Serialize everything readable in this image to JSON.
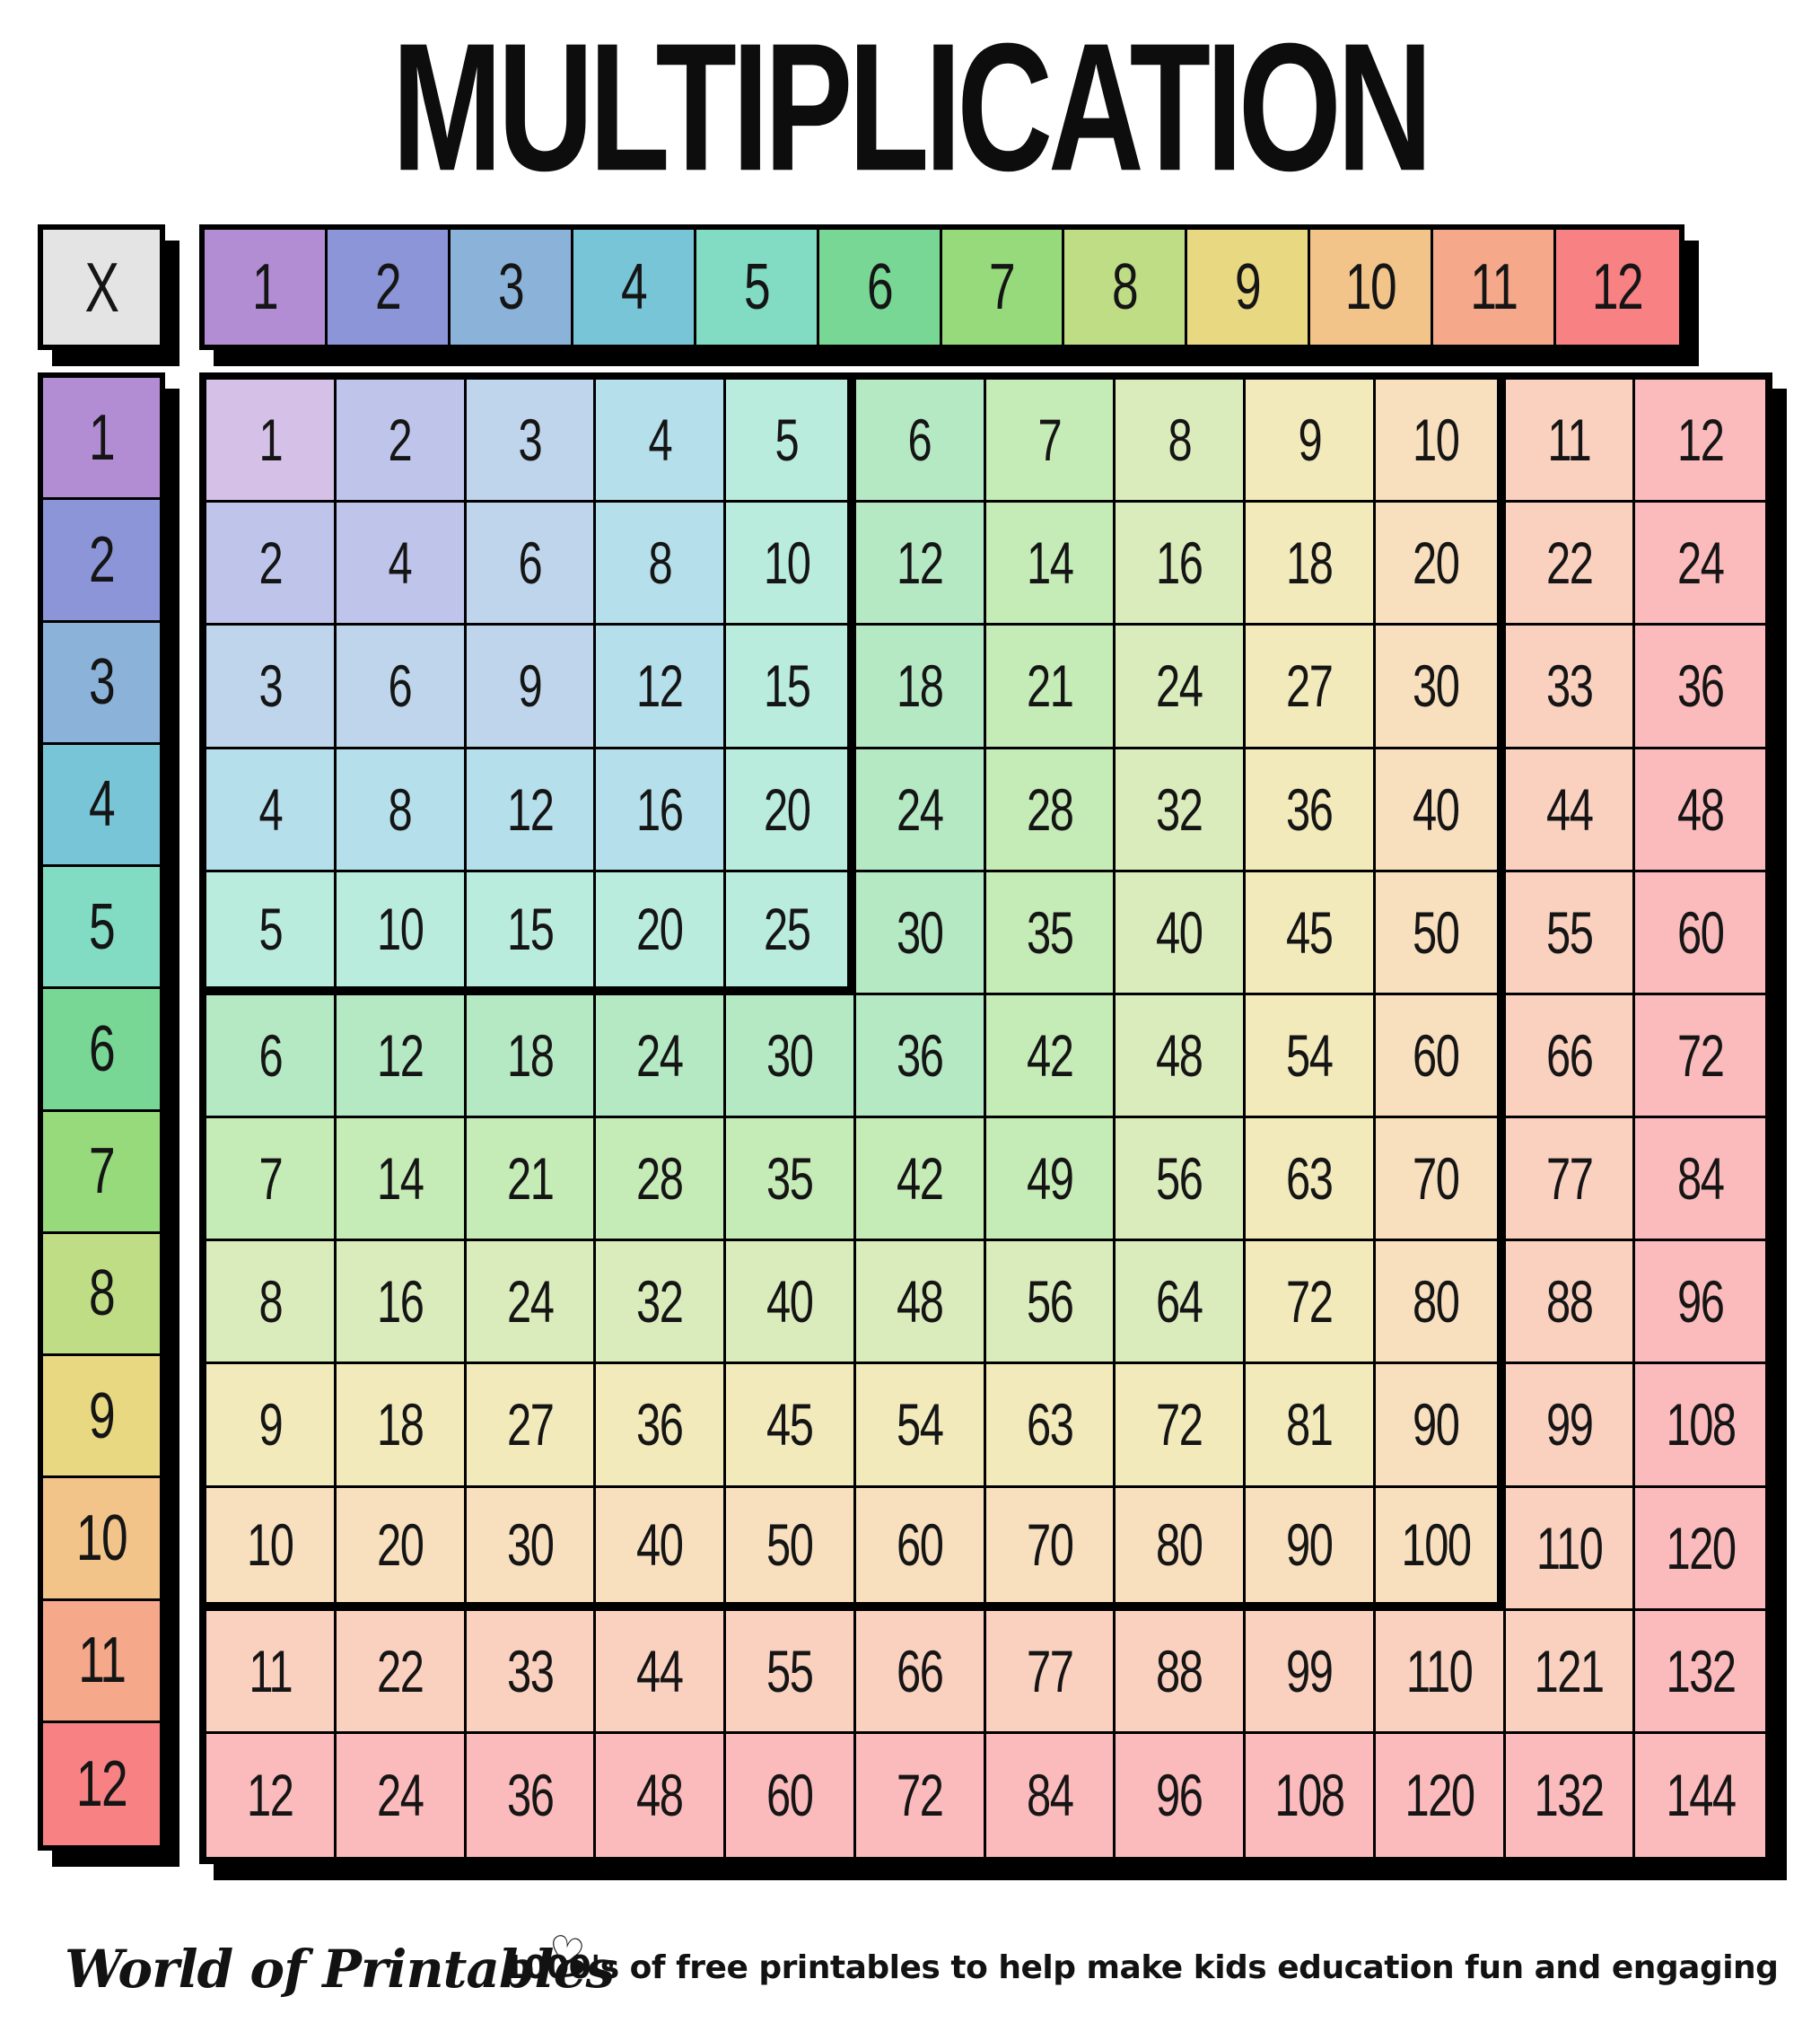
{
  "title": "MULTIPLICATION",
  "table": {
    "corner_label": "X",
    "col_headers": [
      "1",
      "2",
      "3",
      "4",
      "5",
      "6",
      "7",
      "8",
      "9",
      "10",
      "11",
      "12"
    ],
    "row_headers": [
      "1",
      "2",
      "3",
      "4",
      "5",
      "6",
      "7",
      "8",
      "9",
      "10",
      "11",
      "12"
    ],
    "products": [
      [
        1,
        2,
        3,
        4,
        5,
        6,
        7,
        8,
        9,
        10,
        11,
        12
      ],
      [
        2,
        4,
        6,
        8,
        10,
        12,
        14,
        16,
        18,
        20,
        22,
        24
      ],
      [
        3,
        6,
        9,
        12,
        15,
        18,
        21,
        24,
        27,
        30,
        33,
        36
      ],
      [
        4,
        8,
        12,
        16,
        20,
        24,
        28,
        32,
        36,
        40,
        44,
        48
      ],
      [
        5,
        10,
        15,
        20,
        25,
        30,
        35,
        40,
        45,
        50,
        55,
        60
      ],
      [
        6,
        12,
        18,
        24,
        30,
        36,
        42,
        48,
        54,
        60,
        66,
        72
      ],
      [
        7,
        14,
        21,
        28,
        35,
        42,
        49,
        56,
        63,
        70,
        77,
        84
      ],
      [
        8,
        16,
        24,
        32,
        40,
        48,
        56,
        64,
        72,
        80,
        88,
        96
      ],
      [
        9,
        18,
        27,
        36,
        45,
        54,
        63,
        72,
        81,
        90,
        99,
        108
      ],
      [
        10,
        20,
        30,
        40,
        50,
        60,
        70,
        80,
        90,
        100,
        110,
        120
      ],
      [
        11,
        22,
        33,
        44,
        55,
        66,
        77,
        88,
        99,
        110,
        121,
        132
      ],
      [
        12,
        24,
        36,
        48,
        60,
        72,
        84,
        96,
        108,
        120,
        132,
        144
      ]
    ],
    "highlight_blocks": [
      "5x5",
      "10x10"
    ]
  },
  "colors": {
    "background": "#ffffff",
    "border": "#000000",
    "text": "#151515",
    "corner_bg": "#e4e4e4",
    "palette": [
      "#b38dd4",
      "#8b95d8",
      "#8bb3da",
      "#79c5d8",
      "#81dcc3",
      "#78d794",
      "#96da7b",
      "#bedd85",
      "#e8d881",
      "#f2c489",
      "#f6a98a",
      "#f88184"
    ],
    "palette_light": [
      "#d5c0e7",
      "#bfc5ea",
      "#bfd5eb",
      "#b5dfea",
      "#baecde",
      "#b5e9c4",
      "#c5ebb6",
      "#dbecbc",
      "#f2eaba",
      "#f8dfbe",
      "#fad0bf",
      "#fbbabb"
    ]
  },
  "footer": {
    "brand": "World of Printables",
    "heart_icon": "♡",
    "tagline": "1000's of free printables to help make kids education fun and engaging"
  },
  "chart_data": {
    "type": "table",
    "title": "MULTIPLICATION",
    "corner_label": "X",
    "columns": [
      1,
      2,
      3,
      4,
      5,
      6,
      7,
      8,
      9,
      10,
      11,
      12
    ],
    "rows": [
      1,
      2,
      3,
      4,
      5,
      6,
      7,
      8,
      9,
      10,
      11,
      12
    ],
    "values": [
      [
        1,
        2,
        3,
        4,
        5,
        6,
        7,
        8,
        9,
        10,
        11,
        12
      ],
      [
        2,
        4,
        6,
        8,
        10,
        12,
        14,
        16,
        18,
        20,
        22,
        24
      ],
      [
        3,
        6,
        9,
        12,
        15,
        18,
        21,
        24,
        27,
        30,
        33,
        36
      ],
      [
        4,
        8,
        12,
        16,
        20,
        24,
        28,
        32,
        36,
        40,
        44,
        48
      ],
      [
        5,
        10,
        15,
        20,
        25,
        30,
        35,
        40,
        45,
        50,
        55,
        60
      ],
      [
        6,
        12,
        18,
        24,
        30,
        36,
        42,
        48,
        54,
        60,
        66,
        72
      ],
      [
        7,
        14,
        21,
        28,
        35,
        42,
        49,
        56,
        63,
        70,
        77,
        84
      ],
      [
        8,
        16,
        24,
        32,
        40,
        48,
        56,
        64,
        72,
        80,
        88,
        96
      ],
      [
        9,
        18,
        27,
        36,
        45,
        54,
        63,
        72,
        81,
        90,
        99,
        108
      ],
      [
        10,
        20,
        30,
        40,
        50,
        60,
        70,
        80,
        90,
        100,
        110,
        120
      ],
      [
        11,
        22,
        33,
        44,
        55,
        66,
        77,
        88,
        99,
        110,
        121,
        132
      ],
      [
        12,
        24,
        36,
        48,
        60,
        72,
        84,
        96,
        108,
        120,
        132,
        144
      ]
    ],
    "legend": "cell color = rainbow band of max(row, column); thick outlines around the 5x5 and 10x10 sub-blocks"
  }
}
